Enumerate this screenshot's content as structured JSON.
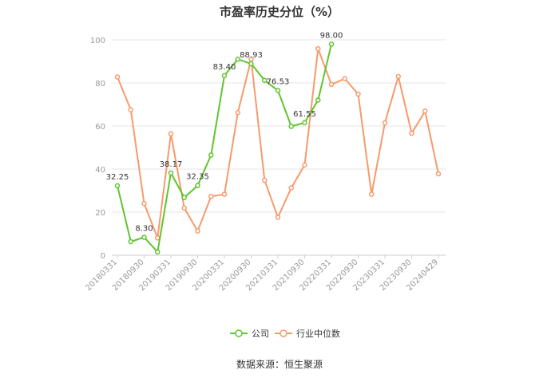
{
  "page": {
    "title": "市盈率历史分位（%）",
    "source": "数据来源：恒生聚源"
  },
  "chart_data": {
    "type": "line",
    "title": "市盈率历史分位（%）",
    "x": [
      "20180331",
      "20180630",
      "20180930",
      "20181231",
      "20190331",
      "20190630",
      "20190930",
      "20191231",
      "20200331",
      "20200630",
      "20200930",
      "20201231",
      "20210331",
      "20210630",
      "20210930",
      "20211231",
      "20220331",
      "20220630",
      "20220930",
      "20221231",
      "20230331",
      "20230630",
      "20230930",
      "20231231",
      "20240429"
    ],
    "x_tick_labels": [
      "20180331",
      "20180930",
      "20190331",
      "20190930",
      "20200331",
      "20200930",
      "20210331",
      "20210930",
      "20220331",
      "20220930",
      "20230331",
      "20230930",
      "20240429"
    ],
    "ylim": [
      0,
      100
    ],
    "y_ticks": [
      0,
      20,
      40,
      60,
      80,
      100
    ],
    "grid": true,
    "legend_position": "bottom",
    "series": [
      {
        "name": "公司",
        "color": "#5fc52e",
        "values": [
          32.25,
          6.3,
          8.3,
          1.5,
          38.17,
          26.8,
          32.35,
          46.5,
          83.4,
          91.0,
          88.93,
          81.2,
          76.53,
          59.8,
          61.55,
          72.0,
          98.0,
          null,
          null,
          null,
          null,
          null,
          null,
          null,
          null
        ],
        "labels": [
          {
            "index": 0,
            "text": "32.25"
          },
          {
            "index": 2,
            "text": "8.30"
          },
          {
            "index": 4,
            "text": "38.17"
          },
          {
            "index": 6,
            "text": "32.35"
          },
          {
            "index": 8,
            "text": "83.40"
          },
          {
            "index": 10,
            "text": "88.93"
          },
          {
            "index": 12,
            "text": "76.53"
          },
          {
            "index": 14,
            "text": "61.55"
          },
          {
            "index": 16,
            "text": "98.00"
          }
        ]
      },
      {
        "name": "行业中位数",
        "color": "#f79a6b",
        "values": [
          82.8,
          67.5,
          24.0,
          8.0,
          56.4,
          21.9,
          11.2,
          27.3,
          28.3,
          66.2,
          91.0,
          34.8,
          17.6,
          31.3,
          41.9,
          95.9,
          79.3,
          82.0,
          74.8,
          28.3,
          61.5,
          83.0,
          56.6,
          66.9,
          37.8
        ],
        "labels": []
      }
    ]
  }
}
